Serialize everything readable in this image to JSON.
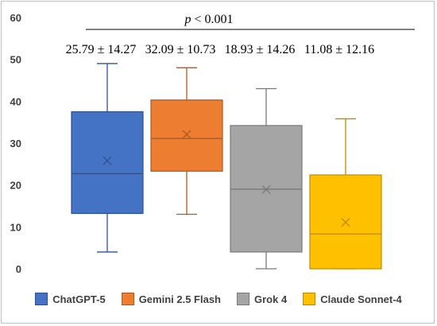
{
  "chart_data": {
    "type": "box",
    "categories": [
      "ChatGPT-5",
      "Gemini 2.5 Flash",
      "Grok 4",
      "Claude Sonnet-4"
    ],
    "ylim": [
      0,
      60
    ],
    "yticks": [
      0,
      10,
      20,
      30,
      40,
      50,
      60
    ],
    "grid": false,
    "legend_position": "bottom",
    "series": [
      {
        "name": "ChatGPT-5",
        "color": "#4472c4",
        "edge": "#2f528f",
        "min": 4,
        "q1": 13.2,
        "median": 22.7,
        "q3": 37.5,
        "max": 49,
        "mean": 25.79,
        "label": "25.79 ± 14.27"
      },
      {
        "name": "Gemini 2.5 Flash",
        "color": "#ed7d31",
        "edge": "#ae5a21",
        "min": 13,
        "q1": 23.3,
        "median": 31.1,
        "q3": 40.3,
        "max": 48,
        "mean": 32.09,
        "label": "32.09 ± 10.73"
      },
      {
        "name": "Grok 4",
        "color": "#a5a5a5",
        "edge": "#787878",
        "min": 0,
        "q1": 4,
        "median": 19,
        "q3": 34.2,
        "max": 43,
        "mean": 18.93,
        "label": "18.93 ± 14.26"
      },
      {
        "name": "Claude Sonnet-4",
        "color": "#ffc000",
        "edge": "#bc8c00",
        "min": 0,
        "q1": 0,
        "median": 8.3,
        "q3": 22.4,
        "max": 35.8,
        "mean": 11.08,
        "label": "11.08 ± 12.16"
      }
    ],
    "annotation": {
      "p_symbol": "p",
      "rest": " < 0.001"
    }
  }
}
